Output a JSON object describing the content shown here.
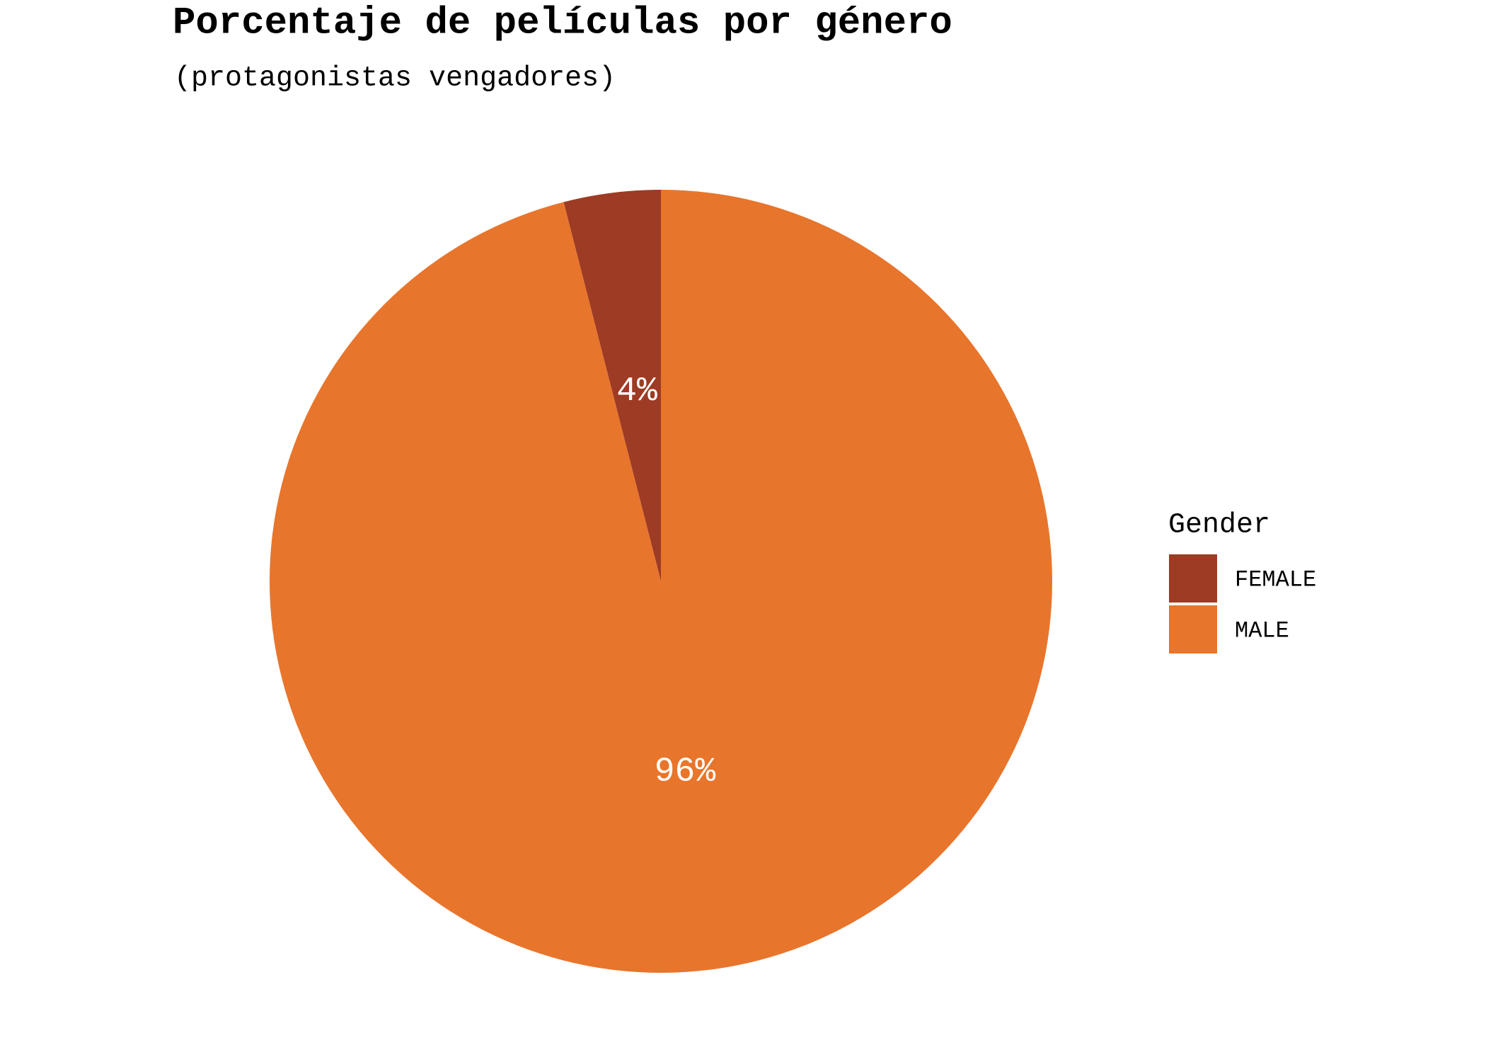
{
  "chart_data": {
    "type": "pie",
    "title": "Porcentaje de películas por género",
    "subtitle": "(protagonistas vengadores)",
    "legend_title": "Gender",
    "legend": "right",
    "categories": [
      "FEMALE",
      "MALE"
    ],
    "values": [
      4,
      96
    ],
    "value_labels": [
      "4%",
      "96%"
    ],
    "colors": [
      "#9e3b24",
      "#e8752c"
    ]
  }
}
